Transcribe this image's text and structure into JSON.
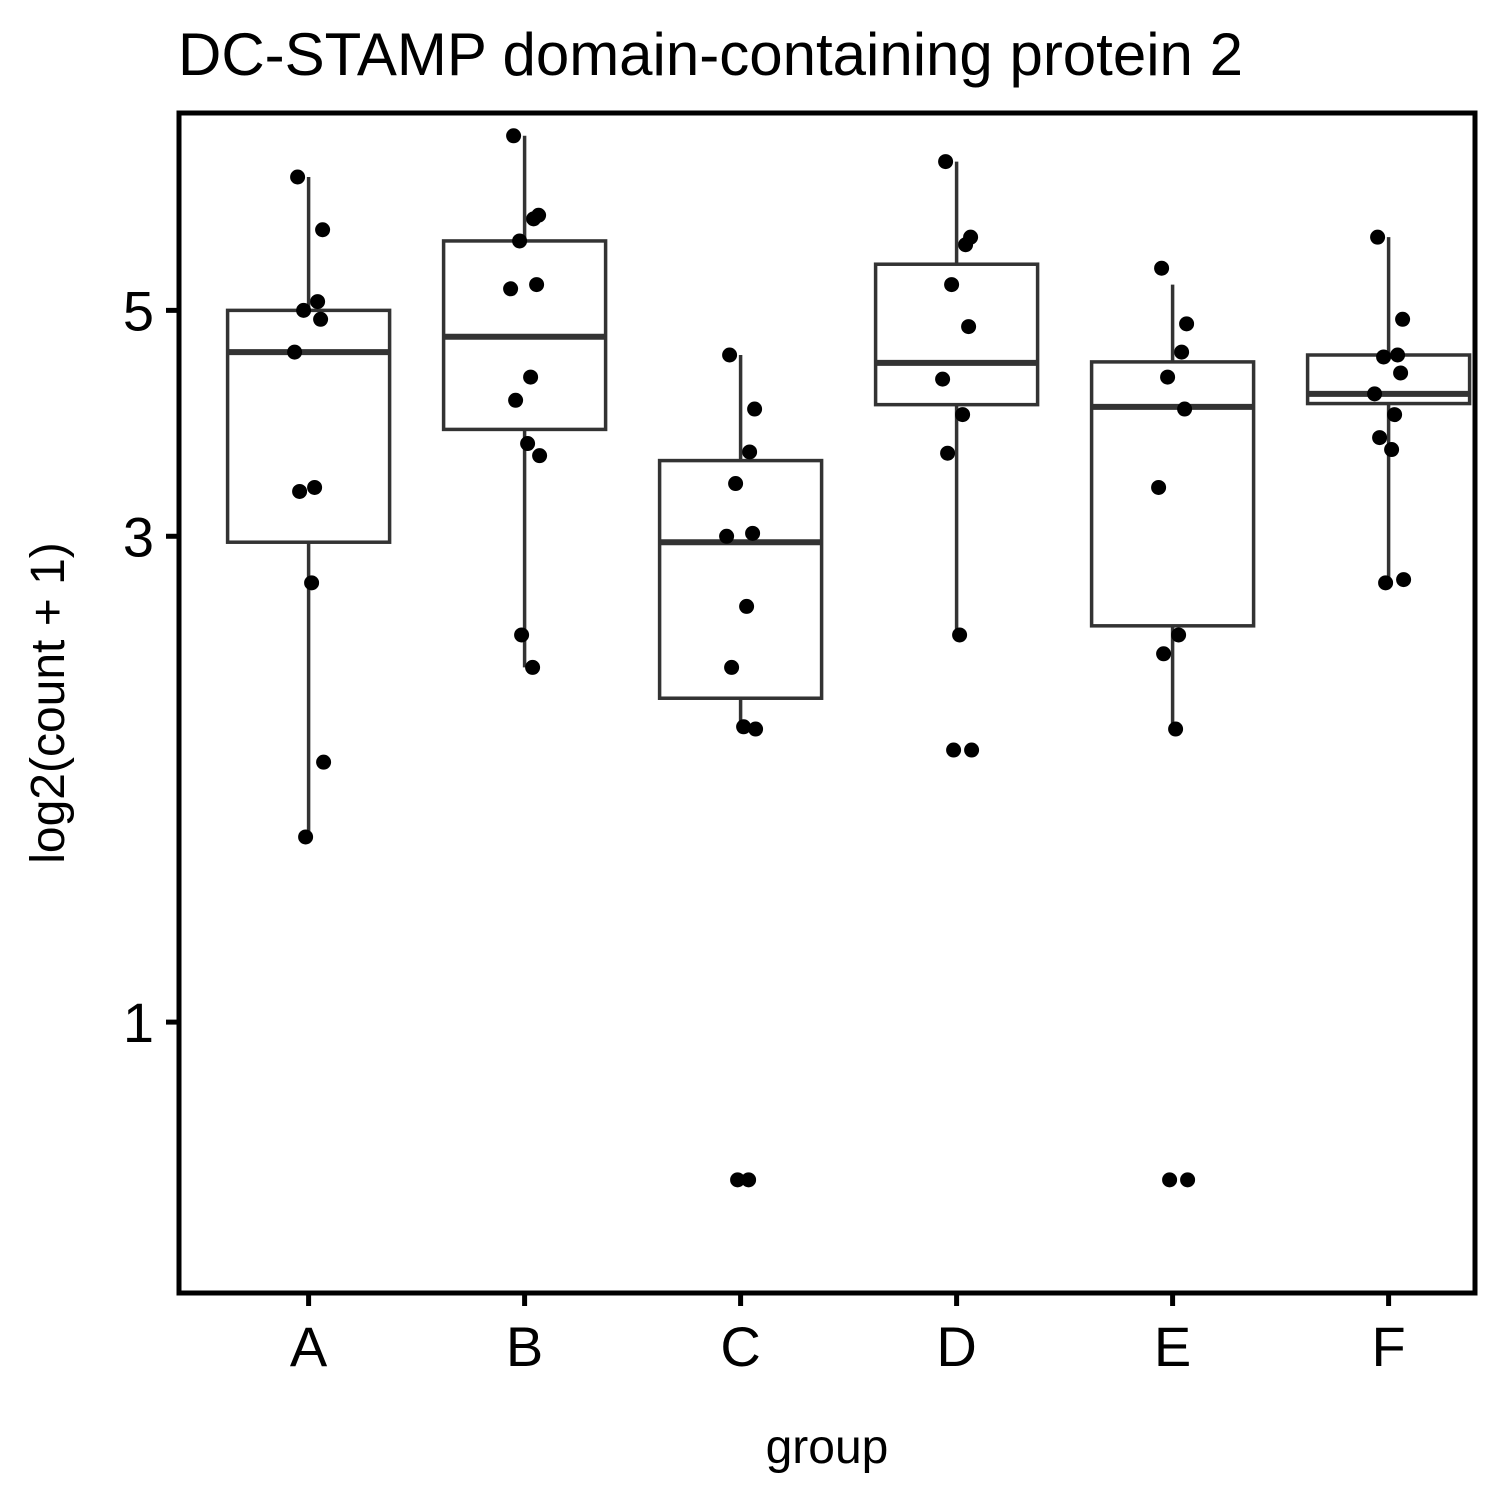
{
  "chart_data": {
    "type": "box",
    "title": "DC-STAMP domain-containing protein 2",
    "xlabel": "group",
    "ylabel": "log2(count + 1)",
    "y_scale": "log2",
    "y_ticks": [
      1,
      3,
      5
    ],
    "ylim": [
      0.6,
      7.4
    ],
    "grid": false,
    "legend": "none",
    "categories": [
      "A",
      "B",
      "C",
      "D",
      "E",
      "F"
    ],
    "boxes": [
      {
        "group": "A",
        "whisker_low": 1.52,
        "q1": 2.96,
        "median": 4.55,
        "q3": 5.0,
        "whisker_high": 6.76
      },
      {
        "group": "B",
        "whisker_low": 2.23,
        "q1": 3.82,
        "median": 4.71,
        "q3": 5.85,
        "whisker_high": 7.42
      },
      {
        "group": "C",
        "whisker_low": 1.94,
        "q1": 2.08,
        "median": 2.96,
        "q3": 3.56,
        "whisker_high": 4.52
      },
      {
        "group": "D",
        "whisker_low": 2.4,
        "q1": 4.04,
        "median": 4.44,
        "q3": 5.55,
        "whisker_high": 7.0
      },
      {
        "group": "E",
        "whisker_low": 1.94,
        "q1": 2.45,
        "median": 4.02,
        "q3": 4.45,
        "whisker_high": 5.3
      },
      {
        "group": "F",
        "whisker_low": 2.7,
        "q1": 4.05,
        "median": 4.14,
        "q3": 4.52,
        "whisker_high": 5.9
      }
    ],
    "points": [
      {
        "group": "A",
        "values": [
          6.76,
          6.0,
          5.1,
          5.0,
          4.9,
          4.55,
          3.35,
          3.32,
          2.7,
          1.8,
          1.52
        ]
      },
      {
        "group": "B",
        "values": [
          7.42,
          6.2,
          6.15,
          5.85,
          5.3,
          5.25,
          4.3,
          4.08,
          3.7,
          3.6,
          2.4,
          2.23
        ]
      },
      {
        "group": "C",
        "values": [
          4.52,
          4.0,
          3.63,
          3.38,
          3.02,
          3.0,
          2.56,
          2.23,
          1.95,
          1.94,
          0.7,
          0.7
        ]
      },
      {
        "group": "D",
        "values": [
          7.0,
          5.9,
          5.8,
          5.3,
          4.82,
          4.28,
          3.95,
          3.62,
          2.4,
          1.85,
          1.85
        ]
      },
      {
        "group": "E",
        "values": [
          5.5,
          4.85,
          4.55,
          4.3,
          4.0,
          3.35,
          2.4,
          2.3,
          1.94,
          0.7,
          0.7
        ]
      },
      {
        "group": "F",
        "values": [
          5.9,
          4.9,
          4.52,
          4.5,
          4.34,
          4.14,
          3.95,
          3.75,
          3.65,
          2.72,
          2.7
        ]
      }
    ],
    "colors": {
      "box_stroke": "#333333",
      "points": "#000000",
      "frame": "#000000"
    }
  }
}
